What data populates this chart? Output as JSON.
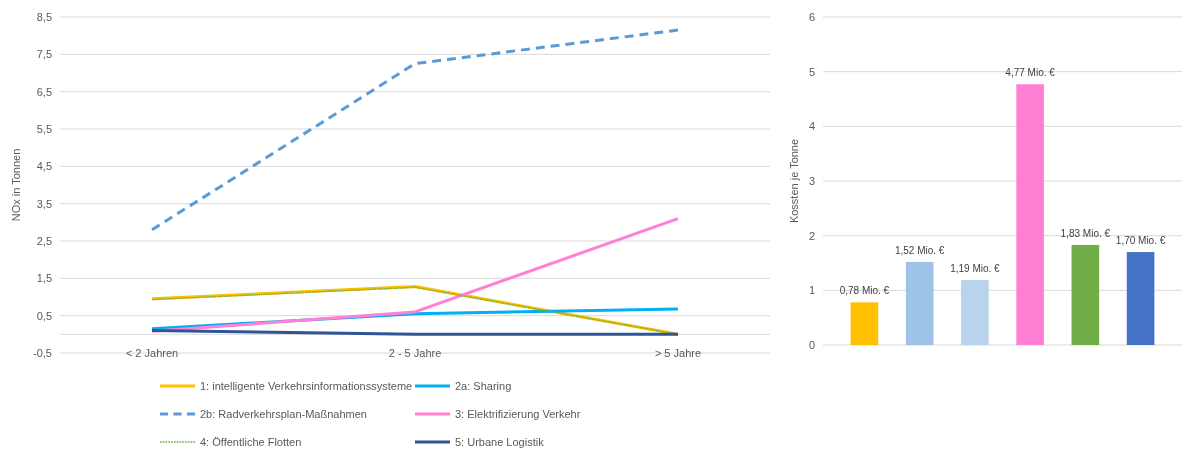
{
  "chart_data": [
    {
      "type": "line",
      "ylabel": "NOx in Tonnen",
      "categories": [
        "< 2 Jahren",
        "2 - 5 Jahre",
        "> 5 Jahre"
      ],
      "series": [
        {
          "name": "1: intelligente Verkehrsinformationssysteme",
          "color": "#ffc000",
          "values": [
            0.95,
            1.28,
            0
          ]
        },
        {
          "name": "2a: Sharing",
          "color": "#00b0f0",
          "values": [
            0.15,
            0.55,
            0.68
          ]
        },
        {
          "name": "2b: Radverkehrsplan-Maßnahmen",
          "color": "#5b9bd5",
          "values": [
            2.8,
            7.25,
            8.15
          ],
          "line_style": "dashed"
        },
        {
          "name": "3: Elektrifizierung Verkehr",
          "color": "#ff80d5",
          "values": [
            0.08,
            0.6,
            3.1
          ]
        },
        {
          "name": "4: Öffentliche Flotten",
          "color": "#70ad47",
          "values": [
            0.93,
            1.26,
            0
          ],
          "line_style": "dotted"
        },
        {
          "name": "5: Urbane Logistik",
          "color": "#2f5597",
          "values": [
            0.1,
            0,
            0
          ]
        }
      ],
      "ylim": [
        -0.5,
        8.5
      ],
      "yticks": [
        {
          "value": -0.5,
          "label": "-0,5"
        },
        {
          "value": 0,
          "label": null
        },
        {
          "value": 0.5,
          "label": "0,5"
        },
        {
          "value": 1.5,
          "label": "1,5"
        },
        {
          "value": 2.5,
          "label": "2,5"
        },
        {
          "value": 3.5,
          "label": "3,5"
        },
        {
          "value": 4.5,
          "label": "4,5"
        },
        {
          "value": 5.5,
          "label": "5,5"
        },
        {
          "value": 6.5,
          "label": "6,5"
        },
        {
          "value": 7.5,
          "label": "7,5"
        },
        {
          "value": 8.5,
          "label": "8,5"
        }
      ],
      "grid": "y",
      "legend": "bottom",
      "marker": "none"
    },
    {
      "type": "bar",
      "ylabel": "Kossten je Tonne",
      "categories": [
        null,
        null,
        null,
        null,
        null,
        null
      ],
      "values": [
        0.78,
        1.52,
        1.19,
        4.77,
        1.83,
        1.7
      ],
      "colors": [
        "#ffc000",
        "#9dc3e6",
        "#b9d3ec",
        "#ff7fd4",
        "#70ad47",
        "#4472c4"
      ],
      "value_labels": [
        "0,78 Mio. €",
        "1,52 Mio. €",
        "1,19 Mio. €",
        "4,77 Mio. €",
        "1,83 Mio. €",
        "1,70 Mio. €"
      ],
      "ylim": [
        0,
        6
      ],
      "yticks": [
        0,
        1,
        2,
        3,
        4,
        5,
        6
      ],
      "grid": "y"
    }
  ]
}
